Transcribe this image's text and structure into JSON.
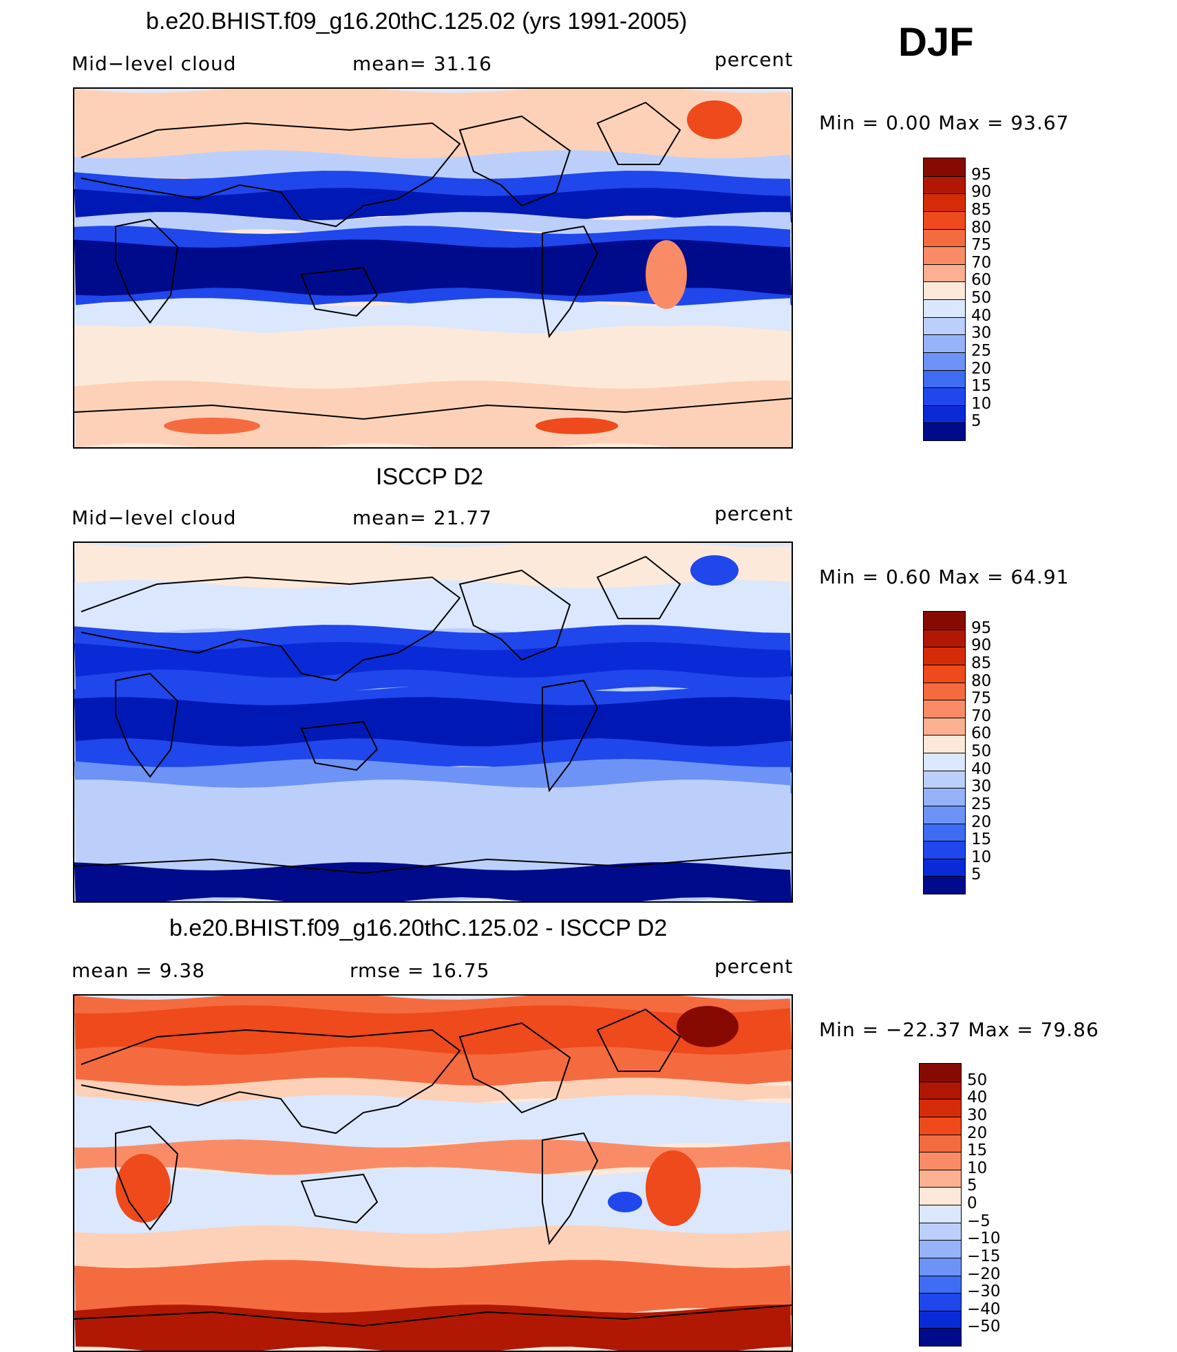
{
  "season": "DJF",
  "colors": {
    "cloud_scale": [
      "#000b8b",
      "#0019b5",
      "#0a2ad8",
      "#1f47eb",
      "#3e6cf3",
      "#6d93f6",
      "#96b2f9",
      "#bccffb",
      "#dbe7fd",
      "#fde9d9",
      "#fcd1b8",
      "#fbb091",
      "#f98c66",
      "#f56b40",
      "#ee4a1b",
      "#d52c07",
      "#b01804",
      "#870a02"
    ],
    "diff_scale": [
      "#000b8b",
      "#0019b5",
      "#0a2ad8",
      "#1f47eb",
      "#3e6cf3",
      "#6d93f6",
      "#96b2f9",
      "#bccffb",
      "#dbe7fd",
      "#fde9d9",
      "#fcd1b8",
      "#fbb091",
      "#f98c66",
      "#f56b40",
      "#ee4a1b",
      "#d52c07",
      "#b01804",
      "#870a02"
    ]
  },
  "panels": [
    {
      "title": "b.e20.BHIST.f09_g16.20thC.125.02 (yrs 1991-2005)",
      "left_label": "Mid−level cloud",
      "center_label": "mean=  31.16",
      "units": "percent",
      "min_max": "Min =    0.00 Max =   93.67",
      "colorbar_labels": [
        "95",
        "90",
        "85",
        "80",
        "75",
        "70",
        "60",
        "50",
        "40",
        "30",
        "25",
        "20",
        "15",
        "10",
        "5"
      ]
    },
    {
      "title": "ISCCP D2",
      "left_label": "Mid−level cloud",
      "center_label": "mean=  21.77",
      "units": "percent",
      "min_max": "Min =    0.60 Max =   64.91",
      "colorbar_labels": [
        "95",
        "90",
        "85",
        "80",
        "75",
        "70",
        "60",
        "50",
        "40",
        "30",
        "25",
        "20",
        "15",
        "10",
        "5"
      ]
    },
    {
      "title": "b.e20.BHIST.f09_g16.20thC.125.02 - ISCCP D2",
      "left_label": "mean =    9.38",
      "center_label": "rmse =   16.75",
      "units": "percent",
      "min_max": "Min = −22.37 Max =   79.86",
      "colorbar_labels": [
        "50",
        "40",
        "30",
        "20",
        "15",
        "10",
        "5",
        "0",
        "−5",
        "−10",
        "−15",
        "−20",
        "−30",
        "−40",
        "−50"
      ]
    }
  ],
  "chart_data": [
    {
      "type": "heatmap",
      "title": "b.e20.BHIST.f09_g16.20thC.125.02 (yrs 1991-2005)",
      "variable": "Mid−level cloud",
      "units": "percent",
      "mean": 31.16,
      "min": 0.0,
      "max": 93.67,
      "contour_levels": [
        5,
        10,
        15,
        20,
        25,
        30,
        40,
        50,
        60,
        70,
        75,
        80,
        85,
        90,
        95
      ]
    },
    {
      "type": "heatmap",
      "title": "ISCCP D2",
      "variable": "Mid−level cloud",
      "units": "percent",
      "mean": 21.77,
      "min": 0.6,
      "max": 64.91,
      "contour_levels": [
        5,
        10,
        15,
        20,
        25,
        30,
        40,
        50,
        60,
        70,
        75,
        80,
        85,
        90,
        95
      ]
    },
    {
      "type": "heatmap",
      "title": "b.e20.BHIST.f09_g16.20thC.125.02 - ISCCP D2",
      "units": "percent",
      "mean": 9.38,
      "rmse": 16.75,
      "min": -22.37,
      "max": 79.86,
      "contour_levels": [
        -50,
        -40,
        -30,
        -20,
        -15,
        -10,
        -5,
        0,
        5,
        10,
        15,
        20,
        30,
        40,
        50
      ]
    }
  ]
}
